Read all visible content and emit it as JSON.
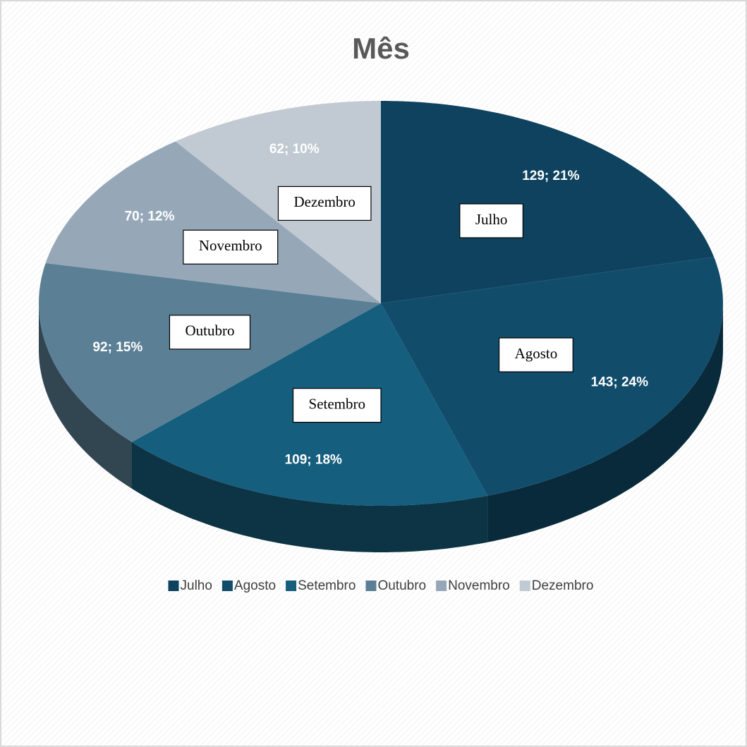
{
  "chart_data": {
    "type": "pie",
    "title": "Mês",
    "categories": [
      "Julho",
      "Agosto",
      "Setembro",
      "Outubro",
      "Novembro",
      "Dezembro"
    ],
    "values": [
      129,
      143,
      109,
      92,
      70,
      62
    ],
    "value_labels": [
      "129; 21%",
      "143; 24%",
      "109; 18%",
      "92; 15%",
      "70; 12%",
      "62; 10%"
    ],
    "colors": [
      "#0e425e",
      "#114d6b",
      "#155e7e",
      "#5b7f95",
      "#96a8b8",
      "#c1c9d2"
    ],
    "legend": "bottom"
  }
}
